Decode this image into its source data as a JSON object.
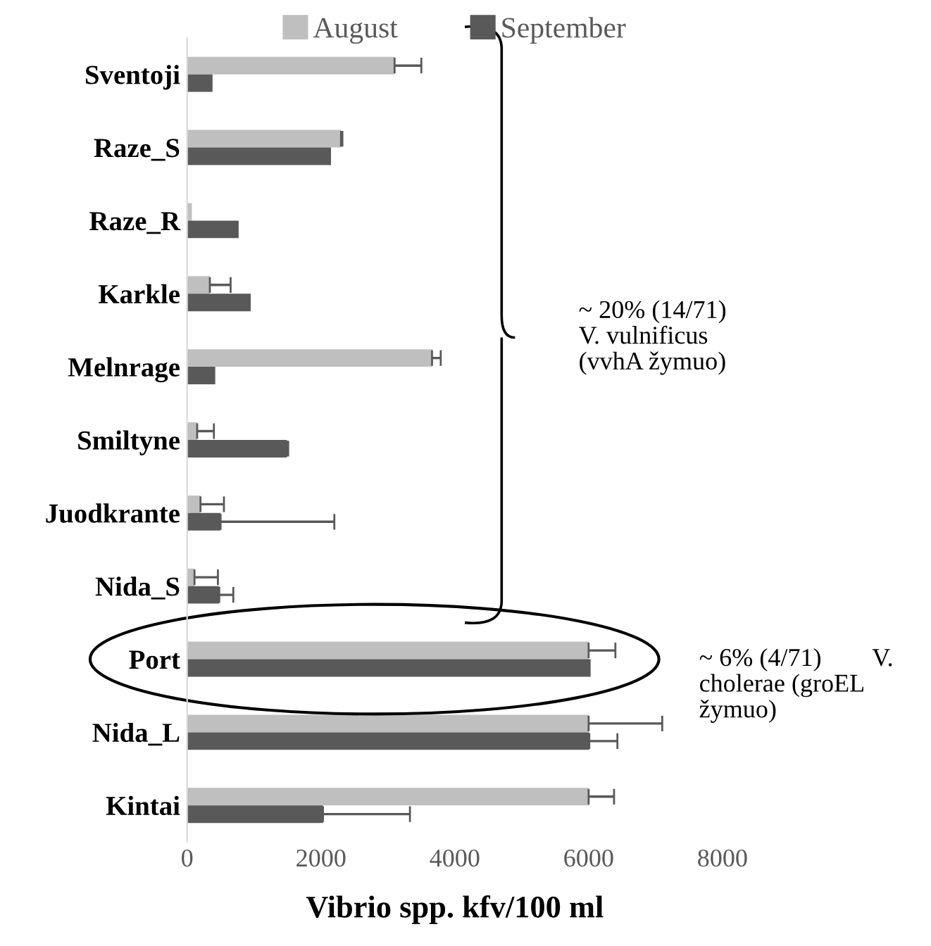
{
  "chart_data": {
    "type": "bar",
    "orientation": "horizontal",
    "xlabel": "Vibrio spp. kfv/100 ml",
    "categories": [
      "Sventoji",
      "Raze_S",
      "Raze_R",
      "Karkle",
      "Melnrage",
      "Smiltyne",
      "Juodkrante",
      "Nida_S",
      "Port",
      "Nida_L",
      "Kintai"
    ],
    "series": [
      {
        "name": "August",
        "color": "#bfbfbf",
        "values": [
          3100,
          2300,
          70,
          340,
          3660,
          150,
          200,
          110,
          6000,
          6000,
          6000
        ],
        "errors": [
          [
            3100,
            3500
          ],
          [
            2300,
            2320
          ],
          null,
          [
            340,
            650
          ],
          [
            3660,
            3790
          ],
          [
            150,
            400
          ],
          [
            200,
            550
          ],
          [
            110,
            460
          ],
          [
            6000,
            6400
          ],
          [
            6000,
            7100
          ],
          [
            6000,
            6380
          ]
        ]
      },
      {
        "name": "September",
        "color": "#595959",
        "values": [
          380,
          2150,
          770,
          950,
          420,
          1490,
          500,
          480,
          6030,
          6010,
          2030
        ],
        "errors": [
          null,
          null,
          null,
          null,
          null,
          [
            1490,
            1510
          ],
          [
            500,
            2200
          ],
          [
            480,
            690
          ],
          null,
          [
            6010,
            6430
          ],
          [
            2030,
            3330
          ]
        ]
      }
    ],
    "xlim": [
      0,
      8000
    ],
    "xticks": [
      0,
      2000,
      4000,
      6000,
      8000
    ],
    "grid": false,
    "legend": "top",
    "annotations": [
      "~ 20% (14/71)\nV. vulnificus\n(vvhA žymuo)",
      "~ 6% (4/71)        V.\ncholerae (groEL\nžymuo)"
    ]
  }
}
